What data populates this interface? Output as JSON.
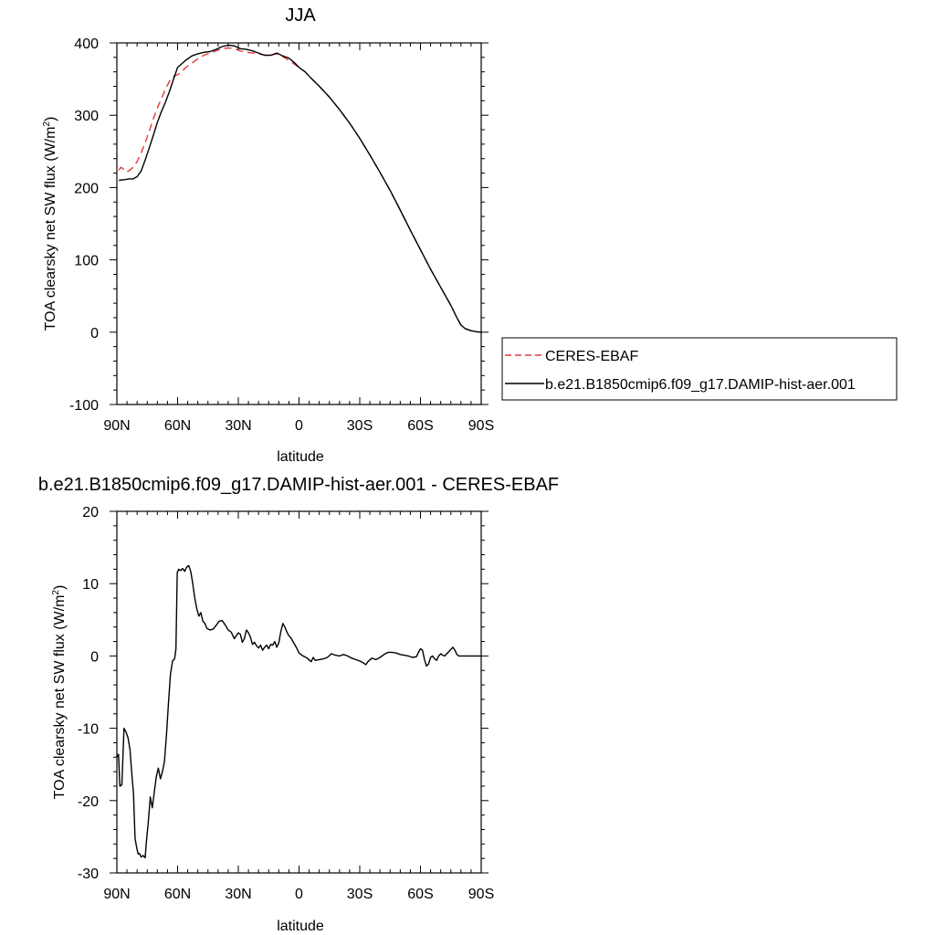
{
  "chart_data": [
    {
      "type": "line",
      "title": "JJA",
      "xlabel": "latitude",
      "ylabel": "TOA clearsky net SW flux (W/m",
      "ylabel_sup": "2",
      "ylabel_tail": ")",
      "xlim": [
        90,
        -90
      ],
      "ylim": [
        -100,
        400
      ],
      "xticks": [
        90,
        60,
        30,
        0,
        -30,
        -60,
        -90
      ],
      "xtick_labels": [
        "90N",
        "60N",
        "30N",
        "0",
        "30S",
        "60S",
        "90S"
      ],
      "yticks": [
        -100,
        0,
        100,
        200,
        300,
        400
      ],
      "ytick_labels": [
        "-100",
        "0",
        "100",
        "200",
        "300",
        "400"
      ],
      "grid": false,
      "legend_position": "right",
      "series": [
        {
          "name": "CERES-EBAF",
          "color": "#e8383b",
          "dash": "dashed",
          "points": [
            [
              89,
              224
            ],
            [
              88,
              228
            ],
            [
              87,
              226
            ],
            [
              86,
              222
            ],
            [
              84,
              223
            ],
            [
              82,
              228
            ],
            [
              80,
              236
            ],
            [
              78,
              248
            ],
            [
              76,
              262
            ],
            [
              74,
              278
            ],
            [
              72,
              295
            ],
            [
              70,
              310
            ],
            [
              68,
              323
            ],
            [
              66,
              336
            ],
            [
              64,
              347
            ],
            [
              62,
              354
            ],
            [
              60,
              356
            ],
            [
              58,
              360
            ],
            [
              56,
              366
            ],
            [
              53,
              372
            ],
            [
              50,
              378
            ],
            [
              47,
              383
            ],
            [
              44,
              386
            ],
            [
              41,
              389
            ],
            [
              38,
              392
            ],
            [
              35,
              393
            ],
            [
              32,
              392
            ],
            [
              29,
              389
            ],
            [
              26,
              387
            ],
            [
              23,
              386
            ],
            [
              20,
              385
            ],
            [
              17,
              383
            ],
            [
              14,
              383
            ],
            [
              11,
              385
            ],
            [
              8,
              381
            ],
            [
              5,
              376
            ],
            [
              2,
              370
            ],
            [
              0,
              366
            ],
            [
              -3,
              360
            ],
            [
              -6,
              351
            ],
            [
              -10,
              340
            ],
            [
              -15,
              325
            ],
            [
              -20,
              308
            ],
            [
              -25,
              289
            ],
            [
              -30,
              268
            ],
            [
              -35,
              245
            ],
            [
              -40,
              221
            ],
            [
              -45,
              196
            ],
            [
              -50,
              169
            ],
            [
              -55,
              141
            ],
            [
              -60,
              114
            ],
            [
              -65,
              87
            ],
            [
              -70,
              62
            ],
            [
              -75,
              37
            ],
            [
              -78,
              20
            ],
            [
              -80,
              10
            ],
            [
              -82,
              5
            ],
            [
              -85,
              2
            ],
            [
              -88,
              0.5
            ],
            [
              -90,
              0
            ]
          ]
        },
        {
          "name": "b.e21.B1850cmip6.f09_g17.DAMIP-hist-aer.001",
          "color": "#000000",
          "dash": "solid",
          "points": [
            [
              89,
              210
            ],
            [
              86,
              211
            ],
            [
              84,
              212
            ],
            [
              82,
              212
            ],
            [
              80,
              215
            ],
            [
              78,
              223
            ],
            [
              76,
              238
            ],
            [
              74,
              255
            ],
            [
              72,
              272
            ],
            [
              70,
              290
            ],
            [
              68,
              305
            ],
            [
              66,
              318
            ],
            [
              64,
              333
            ],
            [
              62,
              350
            ],
            [
              60,
              366
            ],
            [
              58,
              371
            ],
            [
              56,
              376
            ],
            [
              53,
              382
            ],
            [
              50,
              385
            ],
            [
              47,
              387
            ],
            [
              44,
              388
            ],
            [
              41,
              391
            ],
            [
              38,
              395
            ],
            [
              35,
              397
            ],
            [
              32,
              396
            ],
            [
              29,
              392
            ],
            [
              26,
              391
            ],
            [
              23,
              389
            ],
            [
              20,
              386
            ],
            [
              17,
              383
            ],
            [
              14,
              383
            ],
            [
              11,
              386
            ],
            [
              8,
              382
            ],
            [
              5,
              379
            ],
            [
              2,
              372
            ],
            [
              0,
              366
            ],
            [
              -3,
              360
            ],
            [
              -6,
              351
            ],
            [
              -10,
              340
            ],
            [
              -15,
              325
            ],
            [
              -20,
              308
            ],
            [
              -25,
              289
            ],
            [
              -30,
              268
            ],
            [
              -35,
              245
            ],
            [
              -40,
              221
            ],
            [
              -45,
              196
            ],
            [
              -50,
              169
            ],
            [
              -55,
              141
            ],
            [
              -60,
              114
            ],
            [
              -65,
              87
            ],
            [
              -70,
              62
            ],
            [
              -75,
              37
            ],
            [
              -78,
              20
            ],
            [
              -80,
              10
            ],
            [
              -82,
              5
            ],
            [
              -85,
              2
            ],
            [
              -88,
              0.5
            ],
            [
              -90,
              0
            ]
          ]
        }
      ]
    },
    {
      "type": "line",
      "title": "b.e21.B1850cmip6.f09_g17.DAMIP-hist-aer.001 - CERES-EBAF",
      "xlabel": "latitude",
      "ylabel": "TOA clearsky net SW flux (W/m",
      "ylabel_sup": "2",
      "ylabel_tail": ")",
      "xlim": [
        90,
        -90
      ],
      "ylim": [
        -30,
        20
      ],
      "xticks": [
        90,
        60,
        30,
        0,
        -30,
        -60,
        -90
      ],
      "xtick_labels": [
        "90N",
        "60N",
        "30N",
        "0",
        "30S",
        "60S",
        "90S"
      ],
      "yticks": [
        -30,
        -20,
        -10,
        0,
        10,
        20
      ],
      "ytick_labels": [
        "-30",
        "-20",
        "-10",
        "0",
        "10",
        "20"
      ],
      "grid": false,
      "series": [
        {
          "color": "#000000",
          "dash": "solid",
          "points": [
            [
              90,
              -14
            ],
            [
              89.2,
              -13.6
            ],
            [
              88.5,
              -18
            ],
            [
              87.5,
              -17.8
            ],
            [
              86.5,
              -10
            ],
            [
              85.5,
              -10.5
            ],
            [
              84.5,
              -11.3
            ],
            [
              83.5,
              -13
            ],
            [
              82.5,
              -16.7
            ],
            [
              81.8,
              -19
            ],
            [
              81,
              -25.2
            ],
            [
              80.2,
              -26.5
            ],
            [
              79.5,
              -27.4
            ],
            [
              78.8,
              -27.3
            ],
            [
              78,
              -27.8
            ],
            [
              77,
              -27.6
            ],
            [
              76,
              -27.9
            ],
            [
              75.5,
              -26
            ],
            [
              74.5,
              -23
            ],
            [
              73.5,
              -19.5
            ],
            [
              72.5,
              -21
            ],
            [
              71.5,
              -18.8
            ],
            [
              70.5,
              -16.7
            ],
            [
              69.5,
              -15.5
            ],
            [
              68.5,
              -17
            ],
            [
              67.5,
              -16
            ],
            [
              66.5,
              -14.6
            ],
            [
              65.5,
              -11
            ],
            [
              64.5,
              -6.5
            ],
            [
              63.5,
              -2.5
            ],
            [
              62.5,
              -0.7
            ],
            [
              61.5,
              -0.4
            ],
            [
              60.8,
              1
            ],
            [
              60.2,
              11.5
            ],
            [
              59.5,
              12
            ],
            [
              58.5,
              11.8
            ],
            [
              57.5,
              12.1
            ],
            [
              56.5,
              11.7
            ],
            [
              55.5,
              12.3
            ],
            [
              54.5,
              12.5
            ],
            [
              53.5,
              11.7
            ],
            [
              52.5,
              10
            ],
            [
              51.5,
              8
            ],
            [
              50.5,
              6.5
            ],
            [
              49.5,
              5.5
            ],
            [
              48.5,
              6
            ],
            [
              47.5,
              4.8
            ],
            [
              46.5,
              4.5
            ],
            [
              45.5,
              3.8
            ],
            [
              44,
              3.6
            ],
            [
              42.5,
              3.7
            ],
            [
              41,
              4.2
            ],
            [
              39.5,
              4.8
            ],
            [
              38,
              4.9
            ],
            [
              36.5,
              4.3
            ],
            [
              35,
              3.6
            ],
            [
              33.5,
              3.3
            ],
            [
              32,
              2.4
            ],
            [
              31,
              2.8
            ],
            [
              30,
              3.2
            ],
            [
              29,
              3
            ],
            [
              28,
              1.9
            ],
            [
              27,
              2.4
            ],
            [
              26,
              3.6
            ],
            [
              25,
              3.2
            ],
            [
              24,
              2.6
            ],
            [
              23,
              1.6
            ],
            [
              22,
              1.9
            ],
            [
              21,
              1.4
            ],
            [
              20,
              1.1
            ],
            [
              19,
              1.5
            ],
            [
              18,
              0.8
            ],
            [
              17,
              1.2
            ],
            [
              16,
              1.5
            ],
            [
              15,
              1
            ],
            [
              14,
              1.6
            ],
            [
              13,
              1.5
            ],
            [
              12,
              2
            ],
            [
              11,
              1.2
            ],
            [
              10,
              1.8
            ],
            [
              9,
              3.4
            ],
            [
              8,
              4.5
            ],
            [
              7,
              4
            ],
            [
              6,
              3.3
            ],
            [
              5,
              2.8
            ],
            [
              4,
              2.5
            ],
            [
              3,
              2
            ],
            [
              2,
              1.5
            ],
            [
              1,
              1
            ],
            [
              0,
              0.4
            ],
            [
              -2,
              0
            ],
            [
              -4,
              -0.3
            ],
            [
              -6,
              -0.8
            ],
            [
              -7,
              -0.2
            ],
            [
              -8,
              -0.6
            ],
            [
              -10,
              -0.5
            ],
            [
              -12,
              -0.4
            ],
            [
              -14,
              -0.2
            ],
            [
              -16,
              0.3
            ],
            [
              -18,
              0.1
            ],
            [
              -20,
              0
            ],
            [
              -22,
              0.2
            ],
            [
              -24,
              0
            ],
            [
              -26,
              -0.3
            ],
            [
              -28,
              -0.5
            ],
            [
              -30,
              -0.7
            ],
            [
              -32,
              -1
            ],
            [
              -33,
              -1.2
            ],
            [
              -34,
              -0.8
            ],
            [
              -36,
              -0.3
            ],
            [
              -38,
              -0.5
            ],
            [
              -40,
              -0.2
            ],
            [
              -42,
              0.2
            ],
            [
              -44,
              0.5
            ],
            [
              -46,
              0.5
            ],
            [
              -48,
              0.4
            ],
            [
              -50,
              0.2
            ],
            [
              -52,
              0.1
            ],
            [
              -54,
              0
            ],
            [
              -56,
              -0.2
            ],
            [
              -58,
              -0.1
            ],
            [
              -59,
              0.5
            ],
            [
              -60,
              1
            ],
            [
              -61,
              0.8
            ],
            [
              -62,
              -0.5
            ],
            [
              -63,
              -1.4
            ],
            [
              -64,
              -1.1
            ],
            [
              -65,
              -0.2
            ],
            [
              -66,
              0
            ],
            [
              -67,
              -0.4
            ],
            [
              -68,
              -0.6
            ],
            [
              -69,
              0
            ],
            [
              -70,
              0.3
            ],
            [
              -71,
              0.1
            ],
            [
              -72,
              0
            ],
            [
              -74,
              0.6
            ],
            [
              -75,
              0.9
            ],
            [
              -76,
              1.2
            ],
            [
              -77,
              0.8
            ],
            [
              -78,
              0.2
            ],
            [
              -79,
              0
            ],
            [
              -80,
              0
            ],
            [
              -82,
              0
            ],
            [
              -84,
              0
            ],
            [
              -86,
              0
            ],
            [
              -88,
              0
            ],
            [
              -90,
              0
            ]
          ]
        }
      ]
    }
  ]
}
